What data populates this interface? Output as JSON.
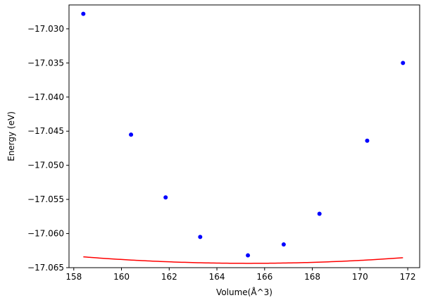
{
  "chart_data": {
    "type": "scatter",
    "title": "",
    "xlabel": "Volume(Å^3)",
    "ylabel": "Energy (eV)",
    "xlim": [
      157.8,
      172.5
    ],
    "ylim": [
      -17.065,
      -17.0265
    ],
    "xticks": [
      158,
      160,
      162,
      164,
      166,
      168,
      170,
      172
    ],
    "yticks": [
      -17.065,
      -17.06,
      -17.055,
      -17.05,
      -17.045,
      -17.04,
      -17.035,
      -17.03
    ],
    "xtick_labels": [
      "158",
      "160",
      "162",
      "164",
      "166",
      "168",
      "170",
      "172"
    ],
    "ytick_labels": [
      "−17.065",
      "−17.060",
      "−17.055",
      "−17.050",
      "−17.045",
      "−17.040",
      "−17.035",
      "−17.030"
    ],
    "grid": false,
    "series": [
      {
        "type": "scatter",
        "color": "#0000ff",
        "x": [
          158.4,
          160.4,
          161.85,
          163.3,
          165.3,
          166.8,
          168.3,
          170.3,
          171.8
        ],
        "y": [
          -17.0278,
          -17.0455,
          -17.0547,
          -17.0605,
          -17.0632,
          -17.0616,
          -17.0571,
          -17.0464,
          -17.035
        ]
      },
      {
        "type": "line",
        "color": "#ff0000",
        "fit": "quadratic",
        "x_range": [
          158.4,
          171.8
        ],
        "coefficients": [
          -16.5264,
          -0.0065073,
          1.96784e-05
        ]
      }
    ]
  }
}
